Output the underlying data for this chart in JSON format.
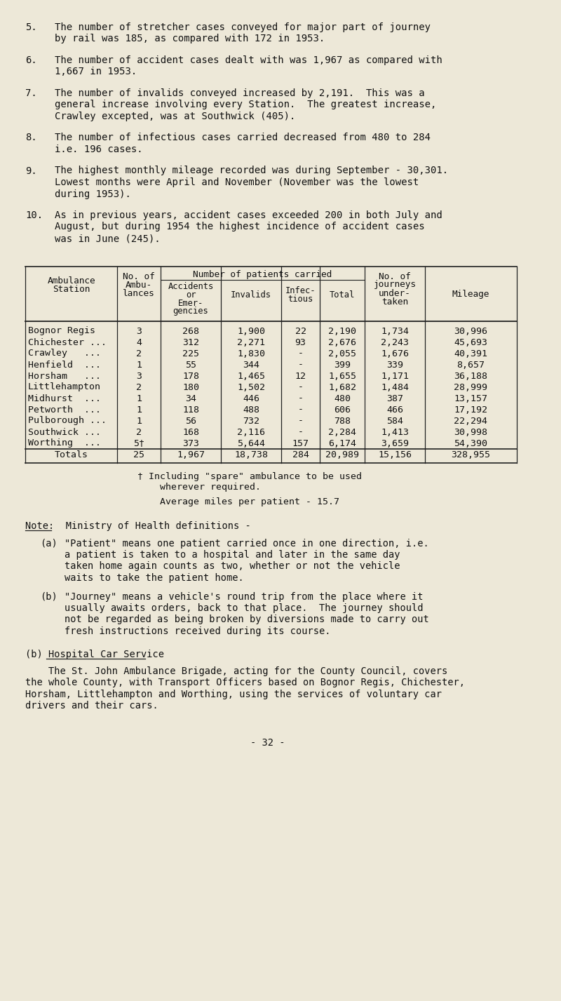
{
  "bg_color": "#ede8d8",
  "text_color": "#1a1a1a",
  "page_number": "- 32 -",
  "numbered_items": [
    {
      "num": "5.",
      "text": "The number of stretcher cases conveyed for major part of journey\nby rail was 185, as compared with 172 in 1953."
    },
    {
      "num": "6.",
      "text": "The number of accident cases dealt with was 1,967 as compared with\n1,667 in 1953."
    },
    {
      "num": "7.",
      "text": "The number of invalids conveyed increased by 2,191.  This was a\ngeneral increase involving every Station.  The greatest increase,\nCrawley excepted, was at Southwick (405)."
    },
    {
      "num": "8.",
      "text": "The number of infectious cases carried decreased from 480 to 284\ni.e. 196 cases."
    },
    {
      "num": "9.",
      "text": "The highest monthly mileage recorded was during September - 30,301.\nLowest months were April and November (November was the lowest\nduring 1953)."
    },
    {
      "num": "10.",
      "text": "As in previous years, accident cases exceeded 200 in both July and\nAugust, but during 1954 the highest incidence of accident cases\nwas in June (245)."
    }
  ],
  "table": {
    "rows": [
      [
        "Bognor Regis",
        "3",
        "268",
        "1,900",
        "22",
        "2,190",
        "1,734",
        "30,996"
      ],
      [
        "Chichester ...",
        "4",
        "312",
        "2,271",
        "93",
        "2,676",
        "2,243",
        "45,693"
      ],
      [
        "Crawley   ...",
        "2",
        "225",
        "1,830",
        "-",
        "2,055",
        "1,676",
        "40,391"
      ],
      [
        "Henfield  ...",
        "1",
        "55",
        "344",
        "-",
        "399",
        "339",
        "8,657"
      ],
      [
        "Horsham   ...",
        "3",
        "178",
        "1,465",
        "12",
        "1,655",
        "1,171",
        "36,188"
      ],
      [
        "Littlehampton",
        "2",
        "180",
        "1,502",
        "-",
        "1,682",
        "1,484",
        "28,999"
      ],
      [
        "Midhurst  ...",
        "1",
        "34",
        "446",
        "-",
        "480",
        "387",
        "13,157"
      ],
      [
        "Petworth  ...",
        "1",
        "118",
        "488",
        "-",
        "606",
        "466",
        "17,192"
      ],
      [
        "Pulborough ...",
        "1",
        "56",
        "732",
        "-",
        "788",
        "584",
        "22,294"
      ],
      [
        "Southwick ...",
        "2",
        "168",
        "2,116",
        "-",
        "2,284",
        "1,413",
        "30,998"
      ],
      [
        "Worthing  ...",
        "5†",
        "373",
        "5,644",
        "157",
        "6,174",
        "3,659",
        "54,390"
      ]
    ],
    "totals_row": [
      "Totals",
      "25",
      "1,967",
      "18,738",
      "284",
      "20,989",
      "15,156",
      "328,955"
    ]
  },
  "footnote_line1": "† Including \"spare\" ambulance to be used",
  "footnote_line2": "    wherever required.",
  "footnote_avg": "    Average miles per patient - 15.7",
  "note_title": "Note:  Ministry of Health definitions -",
  "note_a_label": "(a)",
  "note_a_text": "\"Patient\" means one patient carried once in one direction, i.e.\na patient is taken to a hospital and later in the same day\ntaken home again counts as two, whether or not the vehicle\nwaits to take the patient home.",
  "note_b_label": "(b)",
  "note_b_text": "\"Journey\" means a vehicle's round trip from the place where it\nusually awaits orders, back to that place.  The journey should\nnot be regarded as being broken by diversions made to carry out\nfresh instructions received during its course.",
  "hcs_title": "(b) Hospital Car Service",
  "hcs_body_line1": "    The St. John Ambulance Brigade, acting for the County Council, covers",
  "hcs_body_line2": "the whole County, with Transport Officers based on Bognor Regis, Chichester,",
  "hcs_body_line3": "Horsham, Littlehampton and Worthing, using the services of voluntary car",
  "hcs_body_line4": "drivers and their cars."
}
